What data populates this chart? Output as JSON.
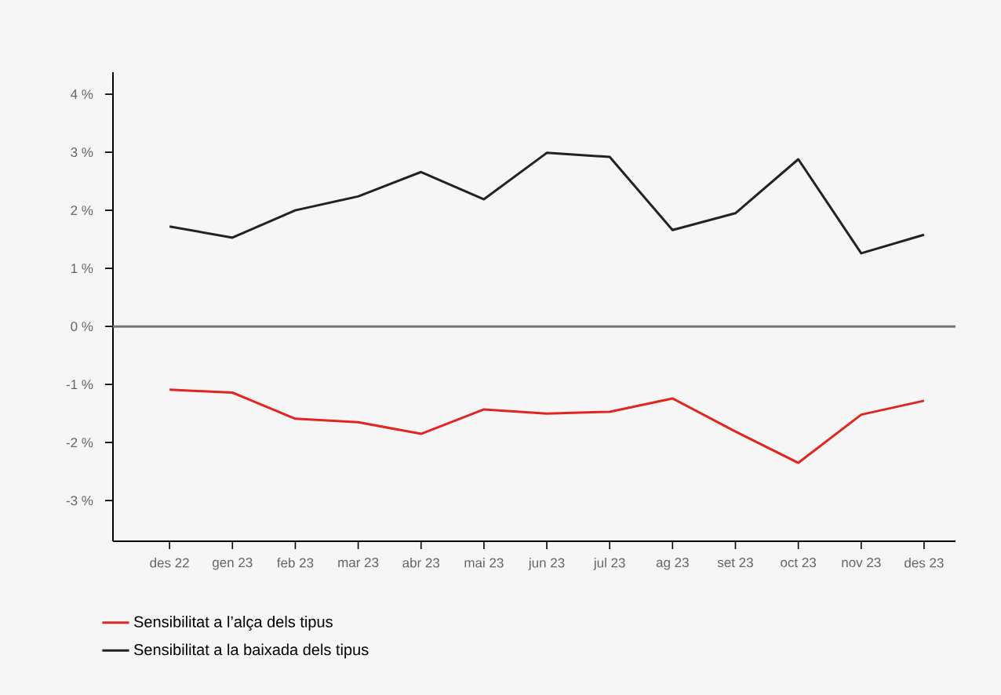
{
  "chart_data": {
    "type": "line",
    "categories": [
      "des 22",
      "gen 23",
      "feb 23",
      "mar 23",
      "abr 23",
      "mai 23",
      "jun 23",
      "jul 23",
      "ag 23",
      "set 23",
      "oct 23",
      "nov 23",
      "des 23"
    ],
    "series": [
      {
        "name": "Sensibilitat a l’alça dels tipus",
        "color": "#e0261f",
        "values": [
          -1.09,
          -1.14,
          -1.59,
          -1.65,
          -1.85,
          -1.43,
          -1.5,
          -1.47,
          -1.24,
          -1.81,
          -2.35,
          -1.52,
          -1.28
        ]
      },
      {
        "name": "Sensibilitat a la baixada dels tipus",
        "color": "#222222",
        "values": [
          1.72,
          1.53,
          2.0,
          2.24,
          2.66,
          2.19,
          2.99,
          2.92,
          1.66,
          1.95,
          2.88,
          1.26,
          1.58
        ]
      }
    ],
    "ylim": [
      -3.7,
      4.38
    ],
    "yticks": [
      {
        "value": -3,
        "label": "-3 %"
      },
      {
        "value": -2,
        "label": "-2 %"
      },
      {
        "value": -1,
        "label": "-1 %"
      },
      {
        "value": 0,
        "label": "0 %"
      },
      {
        "value": 1,
        "label": "1 %"
      },
      {
        "value": 2,
        "label": "2 %"
      },
      {
        "value": 3,
        "label": "3 %"
      },
      {
        "value": 4,
        "label": "4 %"
      }
    ],
    "ref_lines": [
      {
        "axis": "y",
        "value": 0,
        "color": "#777777"
      }
    ],
    "grid": false,
    "legend": "bottom",
    "marker": "none",
    "line_style": "solid"
  }
}
